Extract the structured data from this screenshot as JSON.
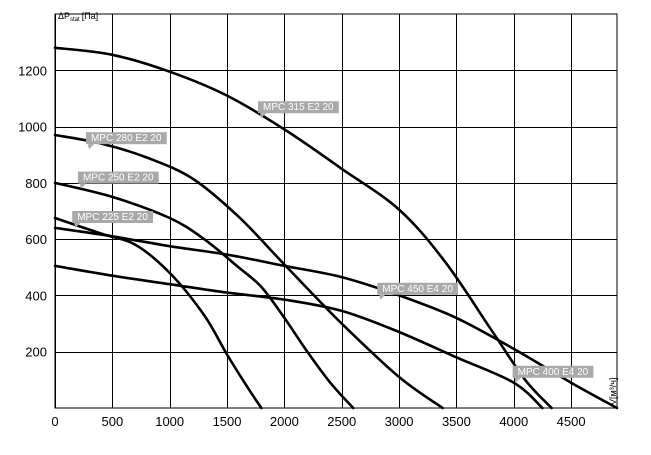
{
  "chart_data": {
    "type": "line",
    "ylabel": "ΔP",
    "ylabel_sub": "stat",
    "ylabel_unit": "[Па]",
    "xlabel": "V[м³/ч]",
    "xlim": [
      0,
      4900
    ],
    "ylim": [
      0,
      1400
    ],
    "x_ticks": [
      0,
      500,
      1000,
      1500,
      2000,
      2500,
      3000,
      3500,
      4000,
      4500
    ],
    "y_ticks": [
      200,
      400,
      600,
      800,
      1000,
      1200
    ],
    "grid": true,
    "series": [
      {
        "name": "MPC 315 E2 20",
        "label_at": [
          1770,
          1090
        ],
        "points": [
          [
            0,
            1280
          ],
          [
            500,
            1255
          ],
          [
            1000,
            1195
          ],
          [
            1500,
            1110
          ],
          [
            2000,
            990
          ],
          [
            2500,
            850
          ],
          [
            3000,
            705
          ],
          [
            3400,
            520
          ],
          [
            3800,
            280
          ],
          [
            4100,
            100
          ],
          [
            4330,
            0
          ]
        ]
      },
      {
        "name": "MPC 280 E2 20",
        "label_at": [
          270,
          980
        ],
        "points": [
          [
            0,
            970
          ],
          [
            400,
            940
          ],
          [
            800,
            890
          ],
          [
            1200,
            815
          ],
          [
            1600,
            680
          ],
          [
            2000,
            510
          ],
          [
            2500,
            300
          ],
          [
            3000,
            110
          ],
          [
            3380,
            0
          ]
        ]
      },
      {
        "name": "MPC 250 E2 20",
        "label_at": [
          200,
          840
        ],
        "points": [
          [
            0,
            800
          ],
          [
            500,
            750
          ],
          [
            1000,
            675
          ],
          [
            1300,
            600
          ],
          [
            1600,
            500
          ],
          [
            1800,
            430
          ],
          [
            2000,
            320
          ],
          [
            2200,
            200
          ],
          [
            2400,
            90
          ],
          [
            2600,
            0
          ]
        ]
      },
      {
        "name": "MPC 225 E2 20",
        "label_at": [
          150,
          700
        ],
        "points": [
          [
            0,
            675
          ],
          [
            400,
            620
          ],
          [
            700,
            580
          ],
          [
            1000,
            480
          ],
          [
            1300,
            330
          ],
          [
            1500,
            190
          ],
          [
            1700,
            60
          ],
          [
            1800,
            0
          ]
        ]
      },
      {
        "name": "MPC 450 E4 20",
        "label_at": [
          2810,
          445
        ],
        "points": [
          [
            0,
            640
          ],
          [
            500,
            610
          ],
          [
            1000,
            575
          ],
          [
            1500,
            545
          ],
          [
            2000,
            505
          ],
          [
            2500,
            465
          ],
          [
            3000,
            400
          ],
          [
            3500,
            320
          ],
          [
            4000,
            210
          ],
          [
            4500,
            90
          ],
          [
            4900,
            0
          ]
        ]
      },
      {
        "name": "MPC 400 E4 20",
        "label_at": [
          3990,
          150
        ],
        "points": [
          [
            0,
            505
          ],
          [
            500,
            470
          ],
          [
            1000,
            440
          ],
          [
            1500,
            410
          ],
          [
            2000,
            385
          ],
          [
            2500,
            345
          ],
          [
            3000,
            270
          ],
          [
            3500,
            180
          ],
          [
            4000,
            90
          ],
          [
            4250,
            0
          ]
        ]
      }
    ]
  }
}
